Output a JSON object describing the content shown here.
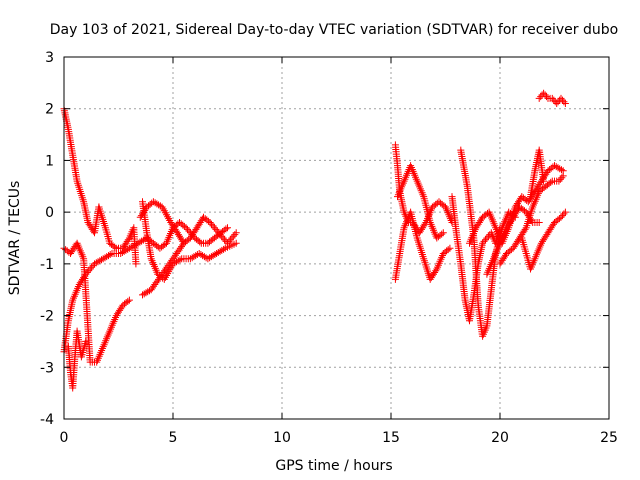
{
  "chart_data": {
    "type": "scatter",
    "title": "Day 103 of 2021, Sidereal Day-to-day VTEC variation (SDTVAR) for receiver dubo",
    "xlabel": "GPS time / hours",
    "ylabel": "SDTVAR / TECUs",
    "xlim": [
      0,
      25
    ],
    "ylim": [
      -4,
      3
    ],
    "xticks": [
      0,
      5,
      10,
      15,
      20,
      25
    ],
    "yticks": [
      -4,
      -3,
      -2,
      -1,
      0,
      1,
      2,
      3
    ],
    "grid": true,
    "marker": "+",
    "color": "#ff0000",
    "series": [
      {
        "name": "SDTVAR",
        "segments": [
          {
            "x": [
              0.0,
              0.2,
              0.4,
              0.6,
              0.9,
              1.1,
              1.4,
              1.6
            ],
            "y": [
              2.0,
              1.6,
              1.1,
              0.6,
              0.2,
              -0.2,
              -0.4,
              0.1
            ]
          },
          {
            "x": [
              1.6,
              1.9,
              2.1,
              2.4,
              2.7,
              3.0,
              3.2,
              3.3
            ],
            "y": [
              0.1,
              -0.3,
              -0.6,
              -0.7,
              -0.7,
              -0.5,
              -0.3,
              -1.0
            ]
          },
          {
            "x": [
              0.0,
              0.2,
              0.4,
              0.7,
              1.0,
              1.4,
              1.8,
              2.2,
              2.6,
              3.0,
              3.4,
              3.8
            ],
            "y": [
              -2.7,
              -2.1,
              -1.7,
              -1.4,
              -1.2,
              -1.0,
              -0.9,
              -0.8,
              -0.8,
              -0.7,
              -0.6,
              -0.5
            ]
          },
          {
            "x": [
              0.0,
              0.3,
              0.6,
              0.9,
              1.2,
              1.5,
              1.8,
              2.1,
              2.4,
              2.7,
              3.0
            ],
            "y": [
              -0.7,
              -0.8,
              -0.6,
              -0.9,
              -2.9,
              -2.9,
              -2.6,
              -2.3,
              -2.0,
              -1.8,
              -1.7
            ]
          },
          {
            "x": [
              0.2,
              0.3,
              0.4,
              0.5,
              0.6,
              0.8,
              1.0
            ],
            "y": [
              -2.6,
              -3.1,
              -3.4,
              -2.8,
              -2.3,
              -2.8,
              -2.5
            ]
          },
          {
            "x": [
              3.6,
              3.8,
              4.0,
              4.3,
              4.6,
              5.0,
              5.4,
              5.8,
              6.2,
              6.6,
              7.0,
              7.4,
              7.9
            ],
            "y": [
              0.2,
              -0.4,
              -0.9,
              -1.2,
              -1.3,
              -1.0,
              -0.9,
              -0.9,
              -0.8,
              -0.9,
              -0.8,
              -0.7,
              -0.6
            ]
          },
          {
            "x": [
              3.6,
              4.0,
              4.5,
              5.0,
              5.5,
              5.8,
              6.1,
              6.4,
              6.7,
              7.1,
              7.5,
              7.9
            ],
            "y": [
              -1.6,
              -1.5,
              -1.2,
              -0.9,
              -0.6,
              -0.5,
              -0.3,
              -0.1,
              -0.2,
              -0.4,
              -0.6,
              -0.4
            ]
          },
          {
            "x": [
              3.8,
              4.1,
              4.4,
              4.7,
              5.0,
              5.3,
              5.6,
              6.0,
              6.3,
              6.6,
              6.9,
              7.2,
              7.5
            ],
            "y": [
              -0.5,
              -0.6,
              -0.7,
              -0.6,
              -0.3,
              -0.2,
              -0.3,
              -0.5,
              -0.6,
              -0.6,
              -0.5,
              -0.4,
              -0.3
            ]
          },
          {
            "x": [
              3.5,
              3.8,
              4.1,
              4.5,
              4.9,
              5.2,
              5.5
            ],
            "y": [
              -0.1,
              0.1,
              0.2,
              0.1,
              -0.2,
              -0.4,
              -0.6
            ]
          },
          {
            "x": [
              15.2,
              15.3,
              15.4,
              15.6,
              15.8,
              16.0,
              16.3,
              16.6,
              16.9,
              17.2,
              17.5,
              17.8
            ],
            "y": [
              1.3,
              0.9,
              0.4,
              0.0,
              -0.2,
              -0.2,
              -0.4,
              -0.2,
              0.1,
              0.2,
              0.1,
              -0.2
            ]
          },
          {
            "x": [
              15.2,
              15.4,
              15.6,
              15.9,
              16.2,
              16.5,
              16.8,
              17.1,
              17.4,
              17.7
            ],
            "y": [
              -1.3,
              -0.8,
              -0.3,
              0.0,
              -0.5,
              -0.9,
              -1.3,
              -1.1,
              -0.8,
              -0.7
            ]
          },
          {
            "x": [
              15.3,
              15.6,
              15.9,
              16.2,
              16.5,
              16.8,
              17.1,
              17.4
            ],
            "y": [
              0.3,
              0.6,
              0.9,
              0.6,
              0.3,
              -0.2,
              -0.5,
              -0.4
            ]
          },
          {
            "x": [
              17.8,
              18.0,
              18.2,
              18.4,
              18.6,
              18.8,
              19.0,
              19.2,
              19.4,
              19.6,
              19.8,
              20.0
            ],
            "y": [
              0.3,
              -0.4,
              -1.0,
              -1.7,
              -2.1,
              -1.6,
              -1.0,
              -0.6,
              -0.5,
              -0.4,
              -0.6,
              -0.3
            ]
          },
          {
            "x": [
              18.2,
              18.5,
              18.8,
              19.0,
              19.2,
              19.4,
              19.6,
              19.8,
              20.1,
              20.4,
              20.7
            ],
            "y": [
              1.2,
              0.5,
              -0.5,
              -1.8,
              -2.4,
              -2.2,
              -1.5,
              -0.8,
              -0.3,
              0.0,
              -0.1
            ]
          },
          {
            "x": [
              18.6,
              18.9,
              19.2,
              19.5,
              19.8,
              20.1,
              20.4,
              20.7,
              21.0,
              21.3,
              21.6,
              21.9,
              22.2,
              22.5,
              22.9
            ],
            "y": [
              -0.6,
              -0.3,
              -0.1,
              0.0,
              -0.3,
              -0.6,
              -0.3,
              0.1,
              0.3,
              0.2,
              0.4,
              0.6,
              0.8,
              0.9,
              0.8
            ]
          },
          {
            "x": [
              19.4,
              19.7,
              20.0,
              20.3,
              20.6,
              20.9,
              21.2,
              21.5,
              21.8
            ],
            "y": [
              -1.2,
              -0.9,
              -0.6,
              -0.3,
              -0.1,
              0.1,
              0.0,
              -0.2,
              -0.2
            ]
          },
          {
            "x": [
              20.0,
              20.3,
              20.6,
              20.9,
              21.2,
              21.5,
              21.8,
              22.1,
              22.4,
              22.7,
              22.9
            ],
            "y": [
              -1.0,
              -0.8,
              -0.7,
              -0.5,
              -0.3,
              0.1,
              0.4,
              0.5,
              0.6,
              0.6,
              0.7
            ]
          },
          {
            "x": [
              21.0,
              21.2,
              21.4,
              21.6,
              21.9,
              22.2,
              22.5,
              22.8,
              23.0
            ],
            "y": [
              -0.5,
              -0.8,
              -1.1,
              -0.9,
              -0.6,
              -0.4,
              -0.2,
              -0.1,
              0.0
            ]
          },
          {
            "x": [
              21.4,
              21.6,
              21.8,
              22.0
            ],
            "y": [
              0.3,
              0.8,
              1.2,
              0.6
            ]
          },
          {
            "x": [
              21.8,
              22.0,
              22.2,
              22.4,
              22.6,
              22.8,
              23.0
            ],
            "y": [
              2.2,
              2.3,
              2.2,
              2.2,
              2.1,
              2.2,
              2.1
            ]
          }
        ]
      }
    ]
  }
}
